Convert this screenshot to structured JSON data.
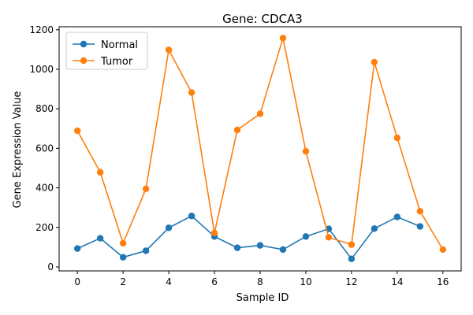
{
  "chart_data": {
    "type": "line",
    "title": "Gene: CDCA3",
    "xlabel": "Sample ID",
    "ylabel": "Gene Expression Value",
    "xlim": [
      -0.8,
      16.8
    ],
    "ylim": [
      -20,
      1215
    ],
    "xticks": [
      0,
      2,
      4,
      6,
      8,
      10,
      12,
      14,
      16
    ],
    "yticks": [
      0,
      200,
      400,
      600,
      800,
      1000,
      1200
    ],
    "grid": false,
    "legend_position": "top-left",
    "series": [
      {
        "name": "Normal",
        "color": "#1f77b4",
        "x": [
          0,
          1,
          2,
          3,
          4,
          5,
          6,
          7,
          8,
          9,
          10,
          11,
          12,
          13,
          14,
          15
        ],
        "values": [
          93,
          145,
          49,
          82,
          198,
          258,
          154,
          97,
          109,
          88,
          154,
          193,
          41,
          194,
          253,
          205
        ]
      },
      {
        "name": "Tumor",
        "color": "#ff7f0e",
        "x": [
          0,
          1,
          2,
          3,
          4,
          5,
          6,
          7,
          8,
          9,
          10,
          11,
          12,
          13,
          14,
          15,
          16
        ],
        "values": [
          689,
          479,
          120,
          395,
          1098,
          882,
          172,
          693,
          775,
          1158,
          585,
          150,
          113,
          1036,
          653,
          282,
          88
        ]
      }
    ]
  }
}
